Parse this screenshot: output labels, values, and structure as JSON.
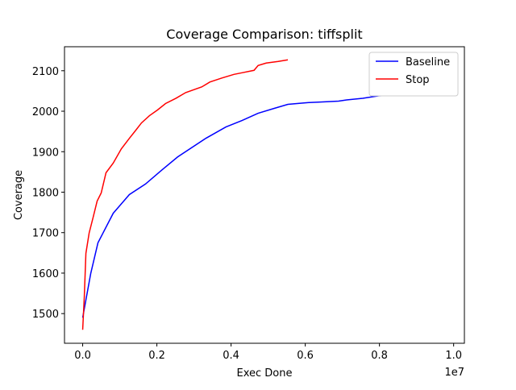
{
  "chart_data": {
    "type": "line",
    "title": "Coverage Comparison: tiffsplit",
    "x_label": "Exec Done",
    "y_label": "Coverage",
    "x_offset_label": "1e7",
    "xlim": [
      -490000,
      10290000
    ],
    "ylim": [
      1426.7,
      2159.3
    ],
    "xticks": [
      {
        "value": 0,
        "label": "0.0"
      },
      {
        "value": 2000000,
        "label": "0.2"
      },
      {
        "value": 4000000,
        "label": "0.4"
      },
      {
        "value": 6000000,
        "label": "0.6"
      },
      {
        "value": 8000000,
        "label": "0.8"
      },
      {
        "value": 10000000,
        "label": "1.0"
      }
    ],
    "yticks": [
      1500,
      1600,
      1700,
      1800,
      1900,
      2000,
      2100
    ],
    "grid": false,
    "legend": "upper right",
    "series": [
      {
        "name": "Baseline",
        "color": "#0000ff",
        "x": [
          0,
          217000,
          412000,
          824000,
          1258000,
          1692000,
          2126000,
          2560000,
          3319000,
          3861000,
          4295000,
          4729000,
          5163000,
          5531000,
          6030000,
          6464000,
          6898000,
          7115000,
          7549000,
          7983000,
          8633000,
          9284000,
          9718000,
          9805000
        ],
        "values": [
          1490,
          1599,
          1675,
          1748,
          1794,
          1820,
          1854,
          1887,
          1933,
          1961,
          1977,
          1995,
          2007,
          2017,
          2021,
          2023,
          2025,
          2028,
          2032,
          2038,
          2040,
          2042,
          2044,
          2046
        ]
      },
      {
        "name": "Stop",
        "color": "#ff0000",
        "x": [
          0,
          43000,
          87000,
          174000,
          282000,
          390000,
          499000,
          629000,
          824000,
          1041000,
          1258000,
          1432000,
          1584000,
          1800000,
          2017000,
          2234000,
          2516000,
          2777000,
          3210000,
          3427000,
          3753000,
          4078000,
          4295000,
          4620000,
          4729000,
          4946000,
          5271000,
          5531000
        ],
        "values": [
          1460,
          1540,
          1649,
          1699,
          1738,
          1778,
          1798,
          1848,
          1872,
          1907,
          1933,
          1953,
          1971,
          1989,
          2003,
          2019,
          2032,
          2046,
          2060,
          2072,
          2082,
          2091,
          2095,
          2101,
          2113,
          2119,
          2123,
          2127
        ]
      }
    ]
  }
}
